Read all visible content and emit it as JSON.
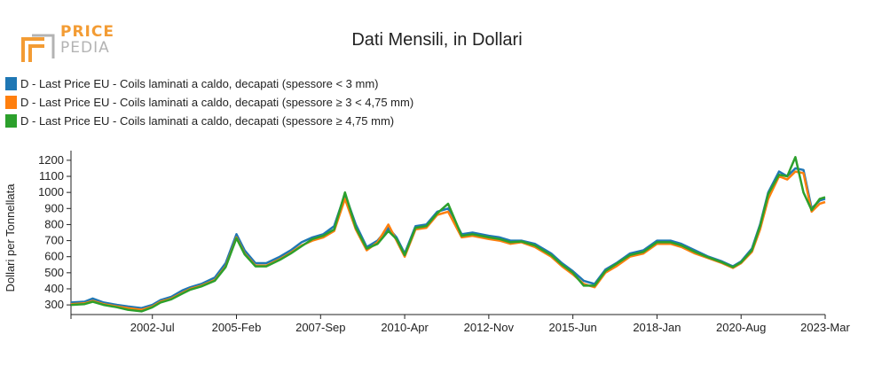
{
  "logo": {
    "line1": "PRICE",
    "line2": "PEDIA"
  },
  "chart_data": {
    "type": "line",
    "title": "Dati Mensili, in Dollari",
    "xlabel": "",
    "ylabel": "Dollari per Tonnellata",
    "grid": false,
    "legend_position": "top-left",
    "x_range": [
      "2000-01",
      "2023-03"
    ],
    "ylim": [
      240,
      1260
    ],
    "y_ticks": [
      300,
      400,
      500,
      600,
      700,
      800,
      900,
      1000,
      1100,
      1200
    ],
    "x_ticks": [
      {
        "date": "2002-07",
        "label": "2002-Jul"
      },
      {
        "date": "2005-02",
        "label": "2005-Feb"
      },
      {
        "date": "2007-09",
        "label": "2007-Sep"
      },
      {
        "date": "2010-04",
        "label": "2010-Apr"
      },
      {
        "date": "2012-11",
        "label": "2012-Nov"
      },
      {
        "date": "2015-06",
        "label": "2015-Jun"
      },
      {
        "date": "2018-01",
        "label": "2018-Jan"
      },
      {
        "date": "2020-08",
        "label": "2020-Aug"
      },
      {
        "date": "2023-03",
        "label": "2023-Mar"
      }
    ],
    "series": [
      {
        "name": "D - Last Price EU - Coils laminati a caldo, decapati (spessore < 3 mm)",
        "color": "#1f77b4",
        "points": [
          [
            "2000-01",
            315
          ],
          [
            "2000-06",
            320
          ],
          [
            "2000-09",
            340
          ],
          [
            "2001-01",
            315
          ],
          [
            "2001-06",
            300
          ],
          [
            "2001-10",
            290
          ],
          [
            "2002-03",
            280
          ],
          [
            "2002-07",
            300
          ],
          [
            "2002-10",
            330
          ],
          [
            "2003-02",
            350
          ],
          [
            "2003-06",
            390
          ],
          [
            "2003-09",
            410
          ],
          [
            "2004-01",
            430
          ],
          [
            "2004-06",
            470
          ],
          [
            "2004-10",
            560
          ],
          [
            "2005-02",
            740
          ],
          [
            "2005-05",
            640
          ],
          [
            "2005-09",
            560
          ],
          [
            "2006-01",
            560
          ],
          [
            "2006-06",
            600
          ],
          [
            "2006-10",
            640
          ],
          [
            "2007-02",
            690
          ],
          [
            "2007-06",
            720
          ],
          [
            "2007-10",
            740
          ],
          [
            "2008-02",
            790
          ],
          [
            "2008-06",
            990
          ],
          [
            "2008-10",
            800
          ],
          [
            "2009-02",
            660
          ],
          [
            "2009-06",
            700
          ],
          [
            "2009-10",
            780
          ],
          [
            "2010-01",
            720
          ],
          [
            "2010-04",
            620
          ],
          [
            "2010-08",
            790
          ],
          [
            "2010-12",
            800
          ],
          [
            "2011-04",
            880
          ],
          [
            "2011-08",
            900
          ],
          [
            "2012-01",
            740
          ],
          [
            "2012-05",
            750
          ],
          [
            "2012-11",
            730
          ],
          [
            "2013-03",
            720
          ],
          [
            "2013-07",
            700
          ],
          [
            "2013-11",
            700
          ],
          [
            "2014-04",
            680
          ],
          [
            "2014-10",
            620
          ],
          [
            "2015-02",
            560
          ],
          [
            "2015-06",
            510
          ],
          [
            "2015-10",
            450
          ],
          [
            "2016-02",
            430
          ],
          [
            "2016-06",
            520
          ],
          [
            "2016-10",
            560
          ],
          [
            "2017-03",
            620
          ],
          [
            "2017-08",
            640
          ],
          [
            "2018-01",
            700
          ],
          [
            "2018-06",
            700
          ],
          [
            "2018-10",
            680
          ],
          [
            "2019-03",
            640
          ],
          [
            "2019-08",
            600
          ],
          [
            "2020-01",
            570
          ],
          [
            "2020-05",
            540
          ],
          [
            "2020-08",
            570
          ],
          [
            "2020-12",
            650
          ],
          [
            "2021-03",
            800
          ],
          [
            "2021-06",
            1000
          ],
          [
            "2021-10",
            1130
          ],
          [
            "2022-01",
            1100
          ],
          [
            "2022-04",
            1150
          ],
          [
            "2022-07",
            1140
          ],
          [
            "2022-10",
            900
          ],
          [
            "2023-01",
            950
          ],
          [
            "2023-03",
            960
          ]
        ]
      },
      {
        "name": "D - Last Price EU - Coils laminati a caldo, decapati (spessore ≥ 3 < 4,75 mm)",
        "color": "#ff7f0e",
        "points": [
          [
            "2000-01",
            305
          ],
          [
            "2000-06",
            310
          ],
          [
            "2000-09",
            325
          ],
          [
            "2001-01",
            305
          ],
          [
            "2001-06",
            290
          ],
          [
            "2001-10",
            280
          ],
          [
            "2002-03",
            270
          ],
          [
            "2002-07",
            290
          ],
          [
            "2002-10",
            320
          ],
          [
            "2003-02",
            340
          ],
          [
            "2003-06",
            375
          ],
          [
            "2003-09",
            400
          ],
          [
            "2004-01",
            420
          ],
          [
            "2004-06",
            455
          ],
          [
            "2004-10",
            540
          ],
          [
            "2005-02",
            720
          ],
          [
            "2005-05",
            620
          ],
          [
            "2005-09",
            545
          ],
          [
            "2006-01",
            545
          ],
          [
            "2006-06",
            585
          ],
          [
            "2006-10",
            625
          ],
          [
            "2007-02",
            670
          ],
          [
            "2007-06",
            700
          ],
          [
            "2007-10",
            720
          ],
          [
            "2008-02",
            760
          ],
          [
            "2008-06",
            960
          ],
          [
            "2008-10",
            770
          ],
          [
            "2009-02",
            640
          ],
          [
            "2009-06",
            690
          ],
          [
            "2009-10",
            800
          ],
          [
            "2010-01",
            700
          ],
          [
            "2010-04",
            600
          ],
          [
            "2010-08",
            770
          ],
          [
            "2010-12",
            780
          ],
          [
            "2011-04",
            860
          ],
          [
            "2011-08",
            880
          ],
          [
            "2012-01",
            720
          ],
          [
            "2012-05",
            730
          ],
          [
            "2012-11",
            710
          ],
          [
            "2013-03",
            700
          ],
          [
            "2013-07",
            680
          ],
          [
            "2013-11",
            690
          ],
          [
            "2014-04",
            660
          ],
          [
            "2014-10",
            600
          ],
          [
            "2015-02",
            540
          ],
          [
            "2015-06",
            490
          ],
          [
            "2015-10",
            430
          ],
          [
            "2016-02",
            410
          ],
          [
            "2016-06",
            500
          ],
          [
            "2016-10",
            540
          ],
          [
            "2017-03",
            600
          ],
          [
            "2017-08",
            620
          ],
          [
            "2018-01",
            680
          ],
          [
            "2018-06",
            680
          ],
          [
            "2018-10",
            660
          ],
          [
            "2019-03",
            620
          ],
          [
            "2019-08",
            590
          ],
          [
            "2020-01",
            560
          ],
          [
            "2020-05",
            530
          ],
          [
            "2020-08",
            560
          ],
          [
            "2020-12",
            630
          ],
          [
            "2021-03",
            770
          ],
          [
            "2021-06",
            960
          ],
          [
            "2021-10",
            1100
          ],
          [
            "2022-01",
            1080
          ],
          [
            "2022-04",
            1130
          ],
          [
            "2022-07",
            1120
          ],
          [
            "2022-10",
            880
          ],
          [
            "2023-01",
            930
          ],
          [
            "2023-03",
            940
          ]
        ]
      },
      {
        "name": "D - Last Price EU - Coils laminati a caldo, decapati (spessore ≥ 4,75 mm)",
        "color": "#2ca02c",
        "points": [
          [
            "2000-01",
            300
          ],
          [
            "2000-06",
            305
          ],
          [
            "2000-09",
            320
          ],
          [
            "2001-01",
            300
          ],
          [
            "2001-06",
            285
          ],
          [
            "2001-10",
            270
          ],
          [
            "2002-03",
            260
          ],
          [
            "2002-07",
            285
          ],
          [
            "2002-10",
            315
          ],
          [
            "2003-02",
            335
          ],
          [
            "2003-06",
            370
          ],
          [
            "2003-09",
            395
          ],
          [
            "2004-01",
            415
          ],
          [
            "2004-06",
            450
          ],
          [
            "2004-10",
            535
          ],
          [
            "2005-02",
            715
          ],
          [
            "2005-05",
            615
          ],
          [
            "2005-09",
            540
          ],
          [
            "2006-01",
            540
          ],
          [
            "2006-06",
            580
          ],
          [
            "2006-10",
            620
          ],
          [
            "2007-02",
            665
          ],
          [
            "2007-06",
            710
          ],
          [
            "2007-10",
            730
          ],
          [
            "2008-02",
            770
          ],
          [
            "2008-06",
            1000
          ],
          [
            "2008-10",
            780
          ],
          [
            "2009-02",
            650
          ],
          [
            "2009-06",
            680
          ],
          [
            "2009-10",
            760
          ],
          [
            "2010-01",
            710
          ],
          [
            "2010-04",
            610
          ],
          [
            "2010-08",
            780
          ],
          [
            "2010-12",
            790
          ],
          [
            "2011-04",
            870
          ],
          [
            "2011-08",
            930
          ],
          [
            "2012-01",
            730
          ],
          [
            "2012-05",
            740
          ],
          [
            "2012-11",
            720
          ],
          [
            "2013-03",
            710
          ],
          [
            "2013-07",
            690
          ],
          [
            "2013-11",
            695
          ],
          [
            "2014-04",
            670
          ],
          [
            "2014-10",
            610
          ],
          [
            "2015-02",
            550
          ],
          [
            "2015-06",
            500
          ],
          [
            "2015-10",
            420
          ],
          [
            "2016-02",
            420
          ],
          [
            "2016-06",
            510
          ],
          [
            "2016-10",
            555
          ],
          [
            "2017-03",
            610
          ],
          [
            "2017-08",
            630
          ],
          [
            "2018-01",
            690
          ],
          [
            "2018-06",
            690
          ],
          [
            "2018-10",
            670
          ],
          [
            "2019-03",
            630
          ],
          [
            "2019-08",
            595
          ],
          [
            "2020-01",
            565
          ],
          [
            "2020-05",
            535
          ],
          [
            "2020-08",
            565
          ],
          [
            "2020-12",
            640
          ],
          [
            "2021-03",
            790
          ],
          [
            "2021-06",
            990
          ],
          [
            "2021-10",
            1110
          ],
          [
            "2022-01",
            1100
          ],
          [
            "2022-04",
            1220
          ],
          [
            "2022-07",
            1000
          ],
          [
            "2022-10",
            890
          ],
          [
            "2023-01",
            960
          ],
          [
            "2023-03",
            970
          ]
        ]
      }
    ]
  }
}
